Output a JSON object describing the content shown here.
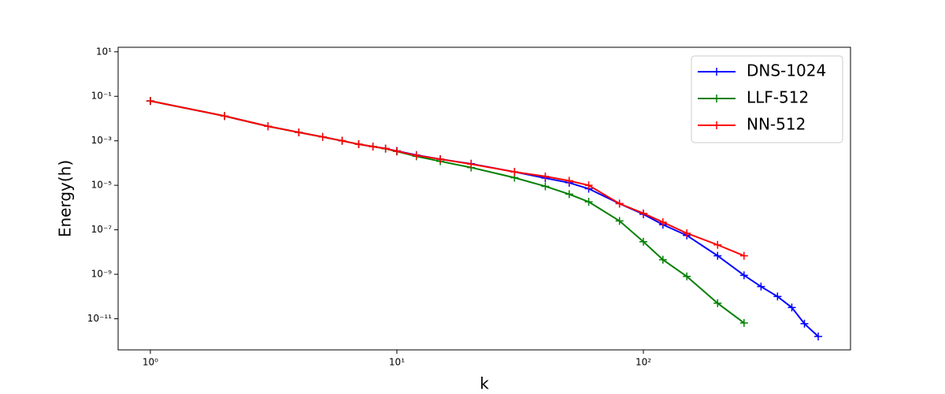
{
  "chart_data": {
    "type": "line",
    "xlabel": "k",
    "ylabel": "Energy(h)",
    "xscale": "log",
    "yscale": "log",
    "xlim": [
      0.74,
      692
    ],
    "ylim": [
      4e-13,
      16
    ],
    "xticks": [
      {
        "value": 1,
        "label": "10⁰"
      },
      {
        "value": 10,
        "label": "10¹"
      },
      {
        "value": 100,
        "label": "10²"
      }
    ],
    "yticks": [
      {
        "value": 1e-11,
        "label": "10⁻¹¹"
      },
      {
        "value": 1e-09,
        "label": "10⁻⁹"
      },
      {
        "value": 1e-07,
        "label": "10⁻⁷"
      },
      {
        "value": 1e-05,
        "label": "10⁻⁵"
      },
      {
        "value": 0.001,
        "label": "10⁻³"
      },
      {
        "value": 0.1,
        "label": "10⁻¹"
      },
      {
        "value": 10,
        "label": "10¹"
      }
    ],
    "legend": "upper right",
    "series": [
      {
        "name": "DNS-1024",
        "color": "#0000ff",
        "x": [
          1,
          2,
          3,
          4,
          5,
          6,
          7,
          8,
          9,
          10,
          12,
          15,
          20,
          30,
          40,
          50,
          60,
          80,
          100,
          120,
          150,
          200,
          256,
          300,
          350,
          400,
          450,
          512
        ],
        "values": [
          0.062,
          0.013,
          0.0045,
          0.0024,
          0.0015,
          0.001,
          0.0007,
          0.00055,
          0.00045,
          0.00035,
          0.00023,
          0.00015,
          9.3e-05,
          4e-05,
          2.1e-05,
          1.3e-05,
          7e-06,
          1.5e-06,
          5e-07,
          1.7e-07,
          5.6e-08,
          6.8e-09,
          9e-10,
          2.8e-10,
          1e-10,
          3.2e-11,
          6e-12,
          1.6e-12
        ]
      },
      {
        "name": "LLF-512",
        "color": "#008000",
        "x": [
          1,
          2,
          3,
          4,
          5,
          6,
          7,
          8,
          9,
          10,
          12,
          15,
          20,
          30,
          40,
          50,
          60,
          80,
          100,
          120,
          150,
          200,
          256
        ],
        "values": [
          0.062,
          0.013,
          0.0045,
          0.0024,
          0.0015,
          0.001,
          0.0007,
          0.00055,
          0.00044,
          0.00033,
          0.0002,
          0.00012,
          6.3e-05,
          2.2e-05,
          9e-06,
          4e-06,
          1.8e-06,
          2.5e-07,
          2.9e-08,
          4.5e-09,
          8e-10,
          5e-11,
          6.5e-12
        ]
      },
      {
        "name": "NN-512",
        "color": "#ff0000",
        "x": [
          1,
          2,
          3,
          4,
          5,
          6,
          7,
          8,
          9,
          10,
          12,
          15,
          20,
          30,
          40,
          50,
          60,
          80,
          100,
          120,
          150,
          200,
          256
        ],
        "values": [
          0.062,
          0.013,
          0.0045,
          0.0024,
          0.0015,
          0.001,
          0.0007,
          0.00055,
          0.00045,
          0.00034,
          0.00022,
          0.00015,
          9e-05,
          4e-05,
          2.5e-05,
          1.6e-05,
          1e-05,
          1.5e-06,
          5.5e-07,
          2.2e-07,
          7e-08,
          2.1e-08,
          6.8e-09
        ]
      }
    ]
  }
}
